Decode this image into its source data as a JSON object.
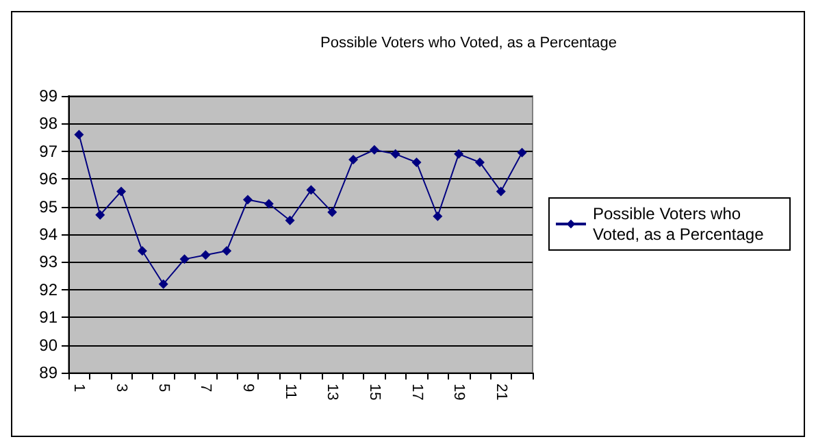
{
  "chart_data": {
    "type": "line",
    "title": "Possible Voters who Voted, as a Percentage",
    "categories": [
      "1",
      null,
      "3",
      null,
      "5",
      null,
      "7",
      null,
      "9",
      null,
      "11",
      null,
      "13",
      null,
      "15",
      null,
      "17",
      null,
      "19",
      null,
      "21",
      null
    ],
    "series": [
      {
        "name": "Possible Voters who Voted, as a Percentage",
        "color": "#000080",
        "values": [
          97.6,
          94.7,
          95.55,
          93.4,
          92.2,
          93.1,
          93.25,
          93.4,
          95.25,
          95.1,
          94.5,
          95.6,
          94.8,
          96.7,
          97.05,
          96.9,
          96.6,
          94.65,
          96.9,
          96.6,
          95.55,
          96.95
        ]
      }
    ],
    "ylim": [
      89,
      99
    ],
    "yticks": [
      89,
      90,
      91,
      92,
      93,
      94,
      95,
      96,
      97,
      98,
      99
    ],
    "grid": "y",
    "legend": "right",
    "marker": "diamond",
    "line_style": "solid"
  }
}
